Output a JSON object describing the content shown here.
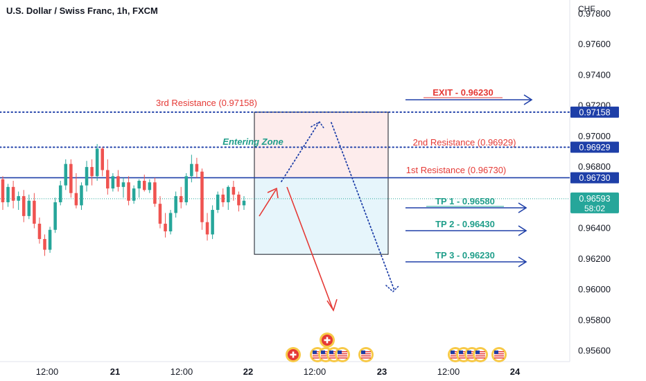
{
  "header": {
    "title": "U.S. Dollar / Swiss Franc, 1h, FXCM"
  },
  "colors": {
    "up": "#26a69a",
    "down": "#ef5350",
    "resistance_line": "#1e3fa8",
    "label_red": "#e53935",
    "label_teal": "#26a69a",
    "arrow_red": "#e53935",
    "arrow_blue": "#1e3fa8",
    "zone_upper": "#fdecec",
    "zone_lower": "#e6f5fb"
  },
  "chart_data": {
    "type": "candlestick",
    "currency": "CHF",
    "ylim": [
      0.9553,
      0.9789
    ],
    "y_ticks": [
      0.978,
      0.976,
      0.974,
      0.972,
      0.97,
      0.968,
      0.966,
      0.964,
      0.962,
      0.96,
      0.958,
      0.956
    ],
    "y_tick_labels": [
      "0.97800",
      "0.97600",
      "0.97400",
      "0.97200",
      "0.97000",
      "0.96800",
      "0.96600",
      "0.96400",
      "0.96200",
      "0.96000",
      "0.95800",
      "0.95600"
    ],
    "x_tick_labels": [
      "12:00",
      "21",
      "12:00",
      "22",
      "12:00",
      "23",
      "12:00",
      "24"
    ],
    "candles": [
      {
        "o": 0.9672,
        "h": 0.9674,
        "l": 0.9652,
        "c": 0.9657
      },
      {
        "o": 0.9657,
        "h": 0.9669,
        "l": 0.9654,
        "c": 0.9667
      },
      {
        "o": 0.9667,
        "h": 0.9671,
        "l": 0.9653,
        "c": 0.9658
      },
      {
        "o": 0.9658,
        "h": 0.9664,
        "l": 0.9652,
        "c": 0.9661
      },
      {
        "o": 0.9661,
        "h": 0.9665,
        "l": 0.9644,
        "c": 0.9648
      },
      {
        "o": 0.9648,
        "h": 0.9662,
        "l": 0.9646,
        "c": 0.9658
      },
      {
        "o": 0.9658,
        "h": 0.9663,
        "l": 0.964,
        "c": 0.9643
      },
      {
        "o": 0.9643,
        "h": 0.9647,
        "l": 0.963,
        "c": 0.9633
      },
      {
        "o": 0.9633,
        "h": 0.9636,
        "l": 0.9622,
        "c": 0.9626
      },
      {
        "o": 0.9626,
        "h": 0.9641,
        "l": 0.9624,
        "c": 0.9639
      },
      {
        "o": 0.9639,
        "h": 0.966,
        "l": 0.9637,
        "c": 0.9657
      },
      {
        "o": 0.9657,
        "h": 0.9671,
        "l": 0.9655,
        "c": 0.9668
      },
      {
        "o": 0.9668,
        "h": 0.9685,
        "l": 0.9665,
        "c": 0.9682
      },
      {
        "o": 0.9682,
        "h": 0.9685,
        "l": 0.966,
        "c": 0.9663
      },
      {
        "o": 0.9663,
        "h": 0.9676,
        "l": 0.9653,
        "c": 0.9655
      },
      {
        "o": 0.9655,
        "h": 0.967,
        "l": 0.9652,
        "c": 0.9668
      },
      {
        "o": 0.9668,
        "h": 0.9684,
        "l": 0.9664,
        "c": 0.968
      },
      {
        "o": 0.968,
        "h": 0.9685,
        "l": 0.9668,
        "c": 0.9674
      },
      {
        "o": 0.9674,
        "h": 0.9695,
        "l": 0.9671,
        "c": 0.9692
      },
      {
        "o": 0.9692,
        "h": 0.9693,
        "l": 0.9674,
        "c": 0.9678
      },
      {
        "o": 0.9678,
        "h": 0.9685,
        "l": 0.9662,
        "c": 0.9666
      },
      {
        "o": 0.9666,
        "h": 0.9676,
        "l": 0.9664,
        "c": 0.9674
      },
      {
        "o": 0.9674,
        "h": 0.9678,
        "l": 0.9664,
        "c": 0.9667
      },
      {
        "o": 0.9667,
        "h": 0.9673,
        "l": 0.966,
        "c": 0.967
      },
      {
        "o": 0.967,
        "h": 0.9674,
        "l": 0.9655,
        "c": 0.9658
      },
      {
        "o": 0.9658,
        "h": 0.9668,
        "l": 0.9656,
        "c": 0.9666
      },
      {
        "o": 0.9666,
        "h": 0.9672,
        "l": 0.966,
        "c": 0.9671
      },
      {
        "o": 0.9671,
        "h": 0.9675,
        "l": 0.9664,
        "c": 0.9665
      },
      {
        "o": 0.9665,
        "h": 0.9672,
        "l": 0.9663,
        "c": 0.967
      },
      {
        "o": 0.967,
        "h": 0.9673,
        "l": 0.9654,
        "c": 0.9656
      },
      {
        "o": 0.9656,
        "h": 0.9661,
        "l": 0.964,
        "c": 0.9643
      },
      {
        "o": 0.9643,
        "h": 0.965,
        "l": 0.9634,
        "c": 0.9638
      },
      {
        "o": 0.9638,
        "h": 0.9652,
        "l": 0.9636,
        "c": 0.965
      },
      {
        "o": 0.965,
        "h": 0.9664,
        "l": 0.9647,
        "c": 0.9661
      },
      {
        "o": 0.9661,
        "h": 0.9667,
        "l": 0.9653,
        "c": 0.9657
      },
      {
        "o": 0.9657,
        "h": 0.9676,
        "l": 0.9655,
        "c": 0.9674
      },
      {
        "o": 0.9674,
        "h": 0.9688,
        "l": 0.967,
        "c": 0.9682
      },
      {
        "o": 0.9682,
        "h": 0.9686,
        "l": 0.9673,
        "c": 0.9677
      },
      {
        "o": 0.9677,
        "h": 0.9679,
        "l": 0.9639,
        "c": 0.9644
      },
      {
        "o": 0.9644,
        "h": 0.965,
        "l": 0.9632,
        "c": 0.9636
      },
      {
        "o": 0.9636,
        "h": 0.9655,
        "l": 0.9633,
        "c": 0.9652
      },
      {
        "o": 0.9652,
        "h": 0.9664,
        "l": 0.965,
        "c": 0.9662
      },
      {
        "o": 0.9662,
        "h": 0.9666,
        "l": 0.9654,
        "c": 0.9657
      },
      {
        "o": 0.9657,
        "h": 0.9668,
        "l": 0.9652,
        "c": 0.9667
      },
      {
        "o": 0.9667,
        "h": 0.9671,
        "l": 0.9658,
        "c": 0.9662
      },
      {
        "o": 0.9662,
        "h": 0.9664,
        "l": 0.9651,
        "c": 0.9655
      },
      {
        "o": 0.9655,
        "h": 0.9661,
        "l": 0.9652,
        "c": 0.9658
      }
    ],
    "last_price": "0.96593",
    "countdown": "58:02",
    "levels": [
      {
        "name": "3rd Resistance",
        "value": 0.97158,
        "label": "0.97158"
      },
      {
        "name": "2nd Resistance",
        "value": 0.96929,
        "label": "0.96929"
      },
      {
        "name": "1st Resistance",
        "value": 0.9673,
        "label": "0.96730"
      }
    ],
    "annotations": {
      "third_resistance": "3rd Resistance (0.97158)",
      "second_resistance": "2nd Resistance (0.96929)",
      "first_resistance": "1st Resistance (0.96730)",
      "entering_zone": "Entering Zone",
      "exit": "EXIT - 0.96230",
      "tp1": "TP 1 - 0.96580",
      "tp2": "TP 2 - 0.96430",
      "tp3": "TP 3 - 0.96230"
    },
    "zone": {
      "top": 0.97158,
      "mid": 0.9673,
      "bottom": 0.9623
    },
    "events": {
      "day22": [
        "swiss-flag",
        "us-flag",
        "us-flag",
        "us-flag",
        "us-flag",
        "us-flag"
      ],
      "day22_top": [
        "swiss-flag"
      ],
      "day23": [
        "us-flag",
        "us-flag",
        "us-flag",
        "us-flag",
        "us-flag"
      ]
    }
  }
}
